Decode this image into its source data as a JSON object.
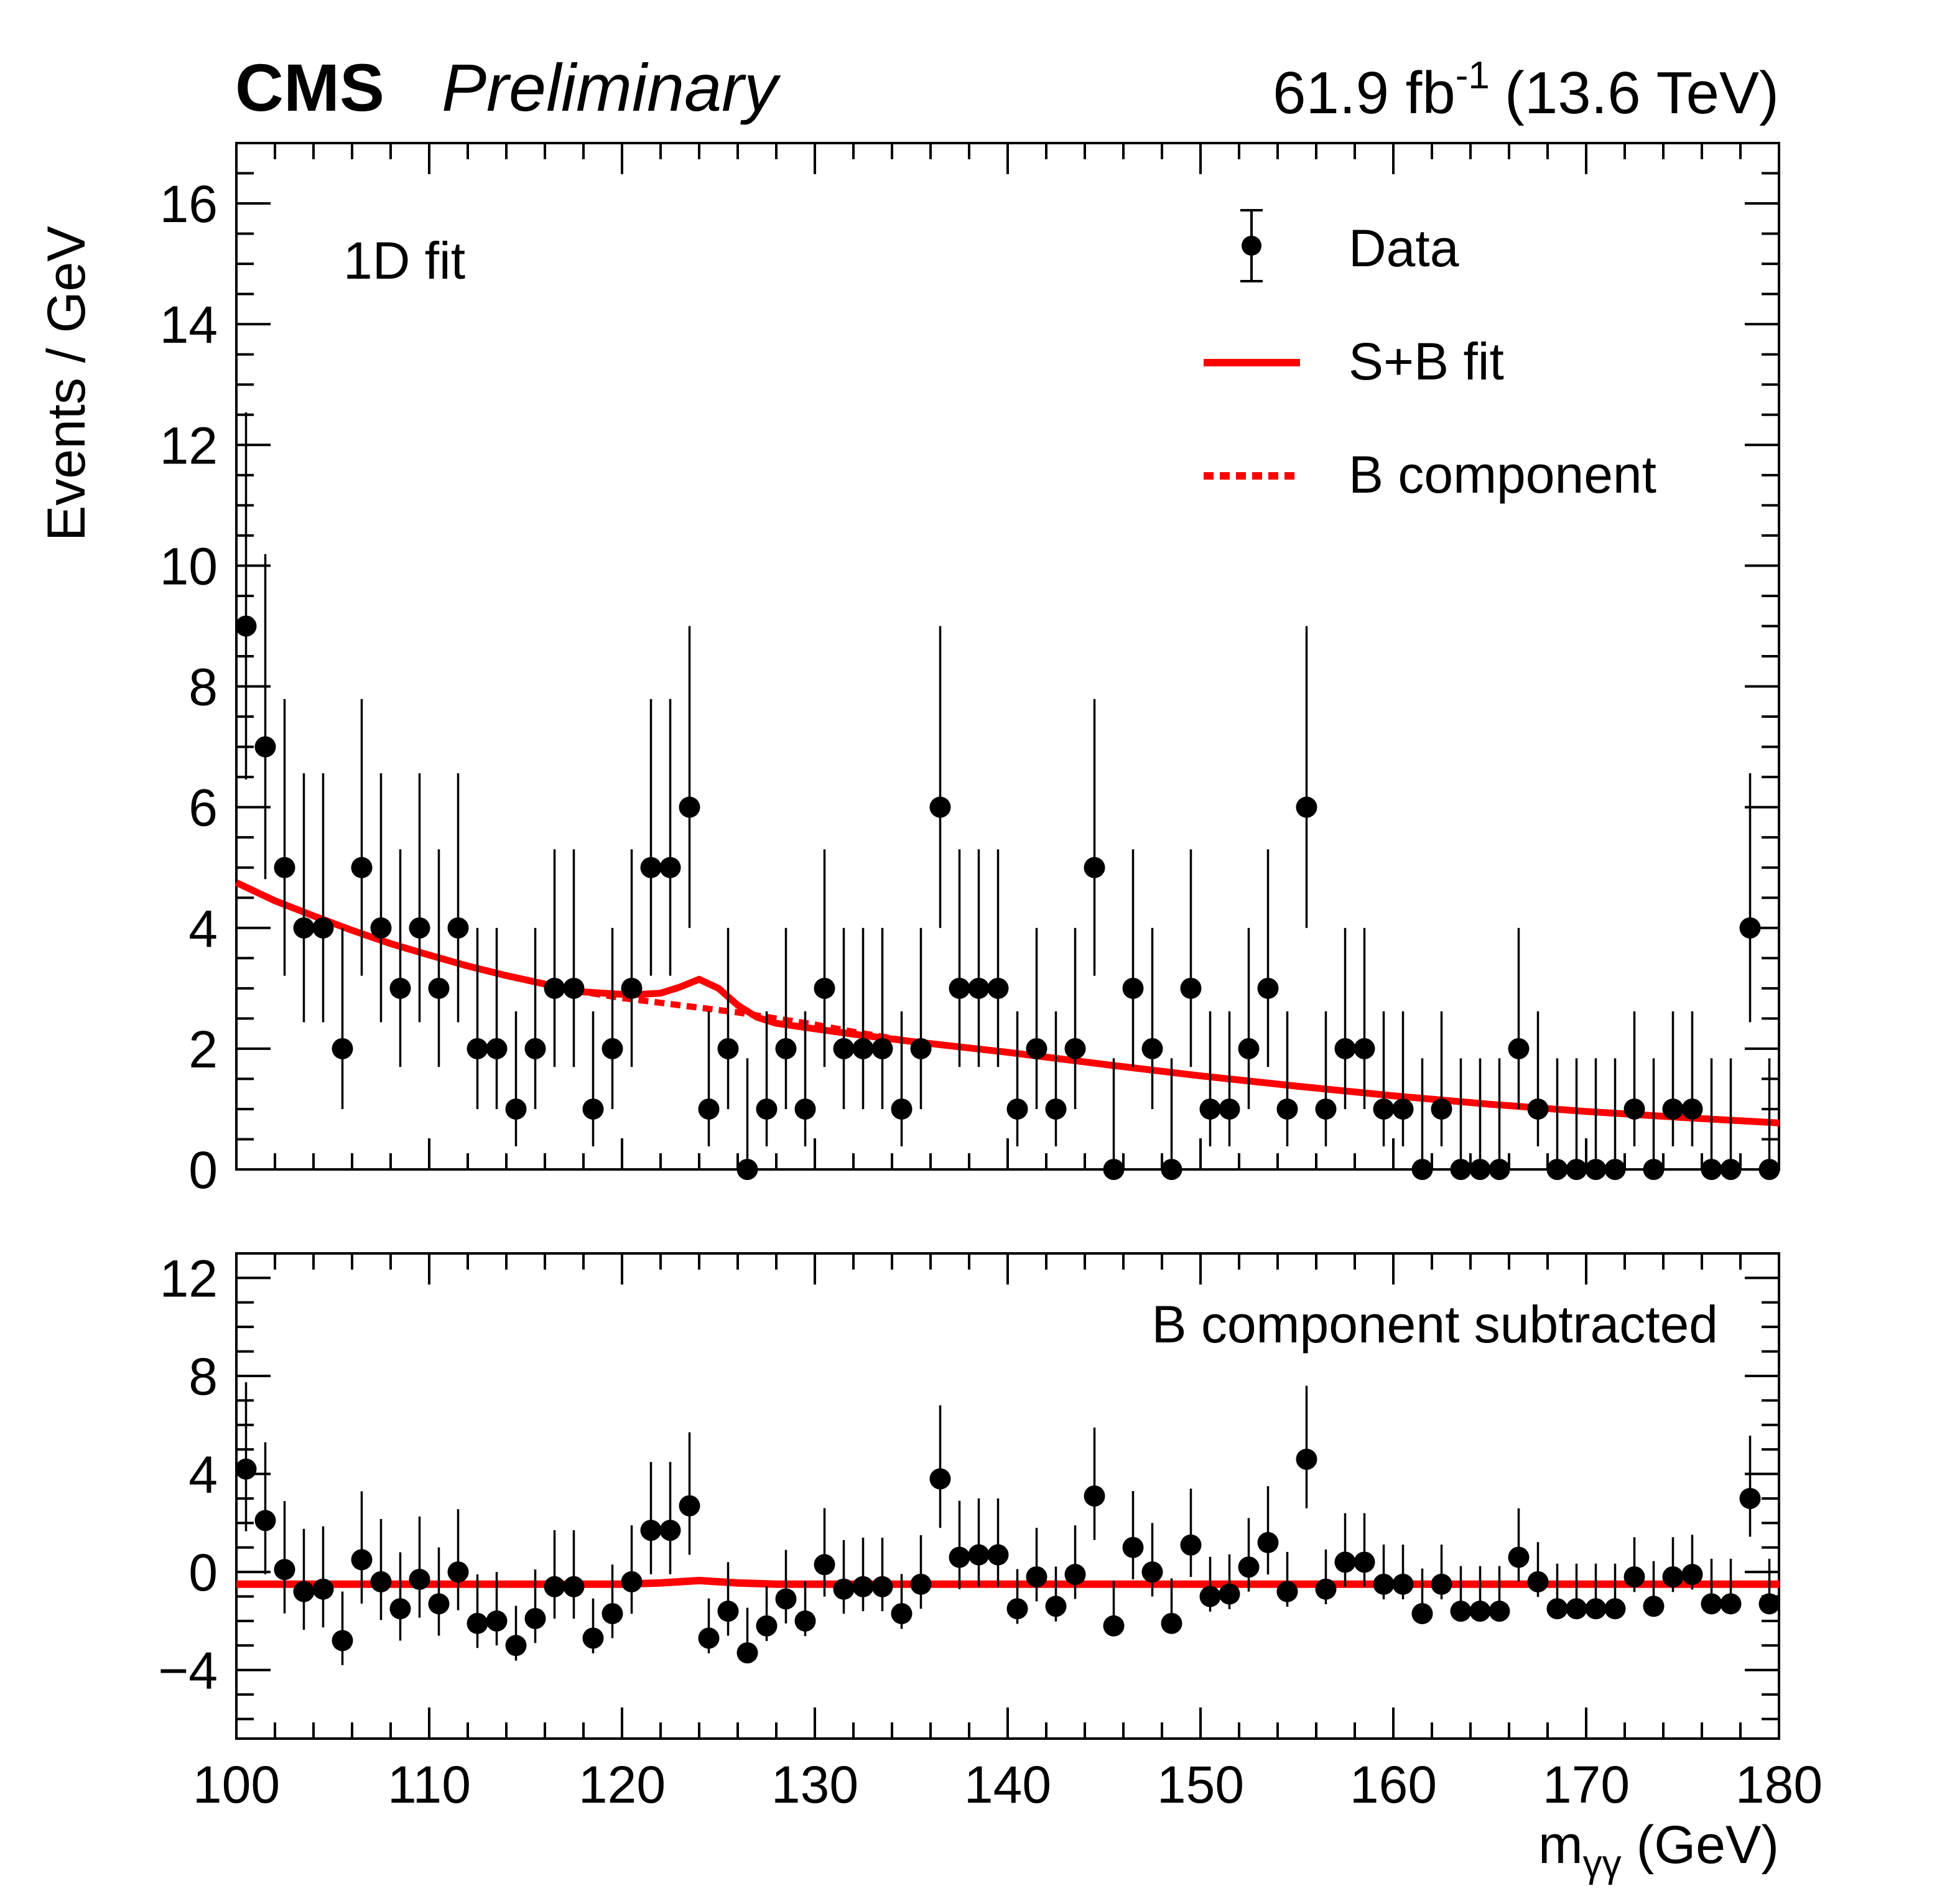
{
  "header": {
    "experiment": "CMS",
    "status": "Preliminary",
    "lumi_value": "61.9 fb",
    "lumi_exp": "-1",
    "energy": "(13.6 TeV)"
  },
  "colors": {
    "fit": "#ff0000",
    "data": "#000000"
  },
  "chart_data": [
    {
      "type": "scatter",
      "panel": "main",
      "annotation": "1D fit",
      "ylabel": "Events / GeV",
      "xlabel": "",
      "xlim": [
        100,
        180
      ],
      "ylim": [
        0,
        17
      ],
      "yticks": [
        0,
        2,
        4,
        6,
        8,
        10,
        12,
        14,
        16
      ],
      "legend": {
        "position": "top-right",
        "entries": [
          {
            "label": "Data",
            "style": "marker-errorbar"
          },
          {
            "label": "S+B fit",
            "style": "solid-line"
          },
          {
            "label": "B component",
            "style": "dashed-line"
          }
        ]
      },
      "series": [
        {
          "name": "Data",
          "x": [
            100.5,
            101.5,
            102.5,
            103.5,
            104.5,
            105.5,
            106.5,
            107.5,
            108.5,
            109.5,
            110.5,
            111.5,
            112.5,
            113.5,
            114.5,
            115.5,
            116.5,
            117.5,
            118.5,
            119.5,
            120.5,
            121.5,
            122.5,
            123.5,
            124.5,
            125.5,
            126.5,
            127.5,
            128.5,
            129.5,
            130.5,
            131.5,
            132.5,
            133.5,
            134.5,
            135.5,
            136.5,
            137.5,
            138.5,
            139.5,
            140.5,
            141.5,
            142.5,
            143.5,
            144.5,
            145.5,
            146.5,
            147.5,
            148.5,
            149.5,
            150.5,
            151.5,
            152.5,
            153.5,
            154.5,
            155.5,
            156.5,
            157.5,
            158.5,
            159.5,
            160.5,
            161.5,
            162.5,
            163.5,
            164.5,
            165.5,
            166.5,
            167.5,
            168.5,
            169.5,
            170.5,
            171.5,
            172.5,
            173.5,
            174.5,
            175.5,
            176.5,
            177.5,
            178.5,
            179.5
          ],
          "y": [
            9,
            7,
            5,
            4,
            4,
            2,
            5,
            4,
            3,
            4,
            3,
            4,
            2,
            2,
            1,
            2,
            3,
            3,
            1,
            2,
            3,
            5,
            5,
            6,
            1,
            2,
            0,
            1,
            2,
            1,
            3,
            2,
            2,
            2,
            1,
            2,
            6,
            3,
            3,
            3,
            1,
            2,
            1,
            2,
            5,
            0,
            3,
            2,
            0,
            3,
            1,
            1,
            2,
            3,
            1,
            6,
            1,
            2,
            2,
            1,
            1,
            0,
            1,
            0,
            0,
            0,
            2,
            1,
            0,
            0,
            0,
            0,
            1,
            0,
            1,
            1,
            0,
            0,
            4,
            0
          ]
        },
        {
          "name": "S+B fit",
          "x": [
            100,
            102,
            104,
            106,
            108,
            110,
            112,
            114,
            116,
            118,
            120,
            121,
            122,
            123,
            124,
            125,
            126,
            127,
            128,
            130,
            132,
            135,
            140,
            145,
            150,
            155,
            160,
            165,
            170,
            175,
            180
          ],
          "y": [
            4.75,
            4.45,
            4.2,
            3.96,
            3.74,
            3.55,
            3.37,
            3.21,
            3.07,
            2.94,
            2.9,
            2.9,
            2.92,
            3.02,
            3.15,
            3.0,
            2.72,
            2.52,
            2.42,
            2.33,
            2.24,
            2.12,
            1.94,
            1.74,
            1.55,
            1.38,
            1.22,
            1.08,
            0.96,
            0.86,
            0.77
          ]
        },
        {
          "name": "B component",
          "x": [
            100,
            102,
            104,
            106,
            108,
            110,
            112,
            114,
            116,
            118,
            120,
            122,
            124,
            126,
            128,
            130,
            132,
            135,
            140,
            145,
            150,
            155,
            160,
            165,
            170,
            175,
            180
          ],
          "y": [
            4.75,
            4.45,
            4.2,
            3.96,
            3.74,
            3.55,
            3.37,
            3.21,
            3.07,
            2.94,
            2.84,
            2.76,
            2.68,
            2.6,
            2.5,
            2.4,
            2.28,
            2.12,
            1.94,
            1.74,
            1.55,
            1.38,
            1.22,
            1.08,
            0.96,
            0.86,
            0.77
          ]
        }
      ]
    },
    {
      "type": "scatter",
      "panel": "ratio",
      "annotation": "B component subtracted",
      "xlabel": "m",
      "xlabel_sub": "γγ",
      "xlabel_unit": "(GeV)",
      "xlim": [
        100,
        180
      ],
      "ylim": [
        -6.8,
        13
      ],
      "yticks": [
        -4,
        0,
        4,
        8,
        12
      ],
      "ytick_labels": [
        "−4",
        "0",
        "4",
        "8",
        "12"
      ],
      "xticks": [
        100,
        110,
        120,
        130,
        140,
        150,
        160,
        170,
        180
      ],
      "series": [
        {
          "name": "Data",
          "x": [
            100.5,
            101.5,
            102.5,
            103.5,
            104.5,
            105.5,
            106.5,
            107.5,
            108.5,
            109.5,
            110.5,
            111.5,
            112.5,
            113.5,
            114.5,
            115.5,
            116.5,
            117.5,
            118.5,
            119.5,
            120.5,
            121.5,
            122.5,
            123.5,
            124.5,
            125.5,
            126.5,
            127.5,
            128.5,
            129.5,
            130.5,
            131.5,
            132.5,
            133.5,
            134.5,
            135.5,
            136.5,
            137.5,
            138.5,
            139.5,
            140.5,
            141.5,
            142.5,
            143.5,
            144.5,
            145.5,
            146.5,
            147.5,
            148.5,
            149.5,
            150.5,
            151.5,
            152.5,
            153.5,
            154.5,
            155.5,
            156.5,
            157.5,
            158.5,
            159.5,
            160.5,
            161.5,
            162.5,
            163.5,
            164.5,
            165.5,
            166.5,
            167.5,
            168.5,
            169.5,
            170.5,
            171.5,
            172.5,
            173.5,
            174.5,
            175.5,
            176.5,
            177.5,
            178.5,
            179.5
          ],
          "y": [
            4.2,
            2.1,
            0.1,
            -0.8,
            -0.7,
            -2.8,
            0.5,
            -0.4,
            -1.5,
            -0.3,
            -1.3,
            0.0,
            -2.1,
            -2.0,
            -3.0,
            -1.9,
            -0.6,
            -0.6,
            -2.7,
            -1.7,
            -0.4,
            1.7,
            1.7,
            2.7,
            -2.7,
            -1.6,
            -3.3,
            -2.2,
            -1.1,
            -2.0,
            0.3,
            -0.7,
            -0.6,
            -0.6,
            -1.7,
            -0.5,
            3.8,
            0.6,
            0.7,
            0.7,
            -1.5,
            -0.2,
            -1.4,
            -0.1,
            3.1,
            -2.2,
            1.0,
            0.0,
            -2.1,
            1.1,
            -1.0,
            -0.9,
            0.2,
            1.2,
            -0.8,
            4.6,
            -0.7,
            0.4,
            0.4,
            -0.5,
            -0.5,
            -1.7,
            -0.5,
            -1.6,
            -1.6,
            -1.6,
            0.6,
            -0.4,
            -1.5,
            -1.5,
            -1.5,
            -1.5,
            -0.2,
            -1.4,
            -0.2,
            -0.1,
            -1.3,
            -1.3,
            3.0,
            -1.3
          ]
        },
        {
          "name": "S+B fit",
          "x": [
            100,
            120,
            122,
            124,
            126,
            128,
            180
          ],
          "y": [
            -0.5,
            -0.5,
            -0.45,
            -0.35,
            -0.45,
            -0.5,
            -0.5
          ]
        }
      ]
    }
  ]
}
